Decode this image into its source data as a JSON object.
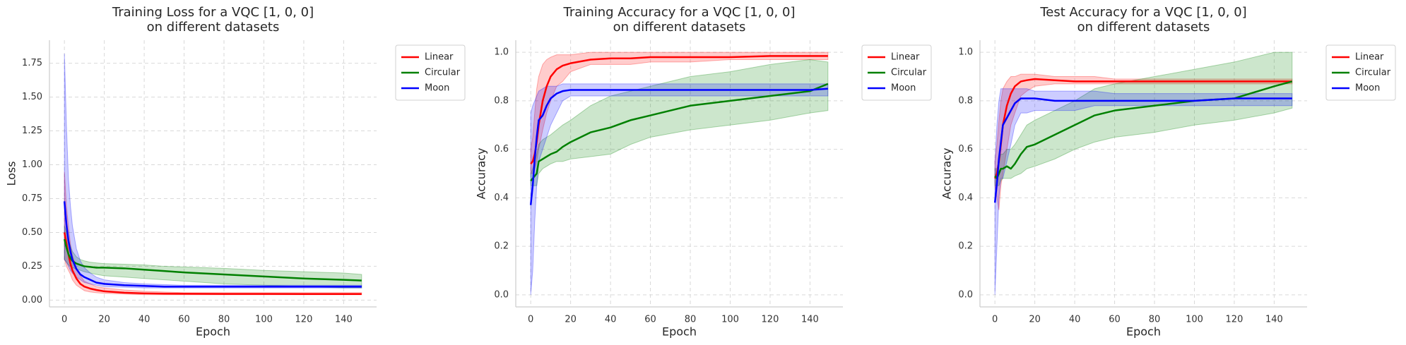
{
  "chart_data": [
    {
      "type": "line",
      "title": "Training Loss for a VQC [1, 0, 0]",
      "subtitle": "on different datasets",
      "xlabel": "Epoch",
      "ylabel": "Loss",
      "x": [
        0,
        1,
        2,
        3,
        4,
        6,
        8,
        10,
        13,
        16,
        20,
        30,
        40,
        50,
        60,
        80,
        100,
        120,
        140,
        149
      ],
      "xlim": [
        -7.5,
        156.5
      ],
      "ylim": [
        -0.05,
        1.92
      ],
      "xticks": [
        0,
        20,
        40,
        60,
        80,
        100,
        120,
        140
      ],
      "yticks": [
        {
          "value": 0,
          "label": "0.00"
        },
        0.25,
        {
          "value": 0.5,
          "label": "0.50"
        },
        0.75,
        {
          "value": 1,
          "label": "1.00"
        },
        1.25,
        {
          "value": 1.5,
          "label": "1.50"
        },
        1.75
      ],
      "grid": true,
      "legend": "outside",
      "band_opacity": 0.2,
      "series": [
        {
          "name": "Linear",
          "color": "#ff0000",
          "values": [
            0.5,
            0.42,
            0.34,
            0.27,
            0.22,
            0.16,
            0.12,
            0.1,
            0.085,
            0.075,
            0.065,
            0.055,
            0.05,
            0.048,
            0.047,
            0.046,
            0.046,
            0.045,
            0.045,
            0.045
          ],
          "lower": [
            0.3,
            0.25,
            0.22,
            0.19,
            0.15,
            0.11,
            0.09,
            0.07,
            0.06,
            0.055,
            0.05,
            0.045,
            0.04,
            0.04,
            0.04,
            0.04,
            0.04,
            0.04,
            0.04,
            0.04
          ],
          "upper": [
            0.95,
            0.7,
            0.55,
            0.42,
            0.33,
            0.24,
            0.18,
            0.14,
            0.12,
            0.1,
            0.09,
            0.075,
            0.065,
            0.06,
            0.055,
            0.055,
            0.055,
            0.055,
            0.055,
            0.055
          ]
        },
        {
          "name": "Circular",
          "color": "#008000",
          "values": [
            0.45,
            0.39,
            0.34,
            0.31,
            0.29,
            0.27,
            0.26,
            0.25,
            0.245,
            0.24,
            0.24,
            0.235,
            0.225,
            0.215,
            0.205,
            0.19,
            0.175,
            0.16,
            0.15,
            0.145
          ],
          "lower": [
            0.3,
            0.28,
            0.26,
            0.25,
            0.24,
            0.23,
            0.22,
            0.21,
            0.2,
            0.19,
            0.18,
            0.17,
            0.16,
            0.15,
            0.14,
            0.12,
            0.11,
            0.1,
            0.09,
            0.09
          ],
          "upper": [
            0.55,
            0.5,
            0.45,
            0.4,
            0.36,
            0.32,
            0.3,
            0.29,
            0.28,
            0.275,
            0.27,
            0.265,
            0.26,
            0.25,
            0.245,
            0.235,
            0.22,
            0.21,
            0.2,
            0.19
          ]
        },
        {
          "name": "Moon",
          "color": "#0000ff",
          "values": [
            0.73,
            0.56,
            0.44,
            0.36,
            0.3,
            0.23,
            0.19,
            0.17,
            0.15,
            0.13,
            0.12,
            0.11,
            0.105,
            0.1,
            0.1,
            0.1,
            0.1,
            0.1,
            0.1,
            0.1
          ],
          "lower": [
            0.3,
            0.28,
            0.25,
            0.22,
            0.2,
            0.17,
            0.15,
            0.13,
            0.12,
            0.11,
            0.1,
            0.095,
            0.09,
            0.09,
            0.09,
            0.09,
            0.09,
            0.09,
            0.09,
            0.09
          ],
          "upper": [
            1.82,
            1.3,
            0.9,
            0.7,
            0.55,
            0.38,
            0.29,
            0.24,
            0.2,
            0.17,
            0.15,
            0.13,
            0.12,
            0.115,
            0.11,
            0.11,
            0.11,
            0.11,
            0.11,
            0.11
          ]
        }
      ]
    },
    {
      "type": "line",
      "title": "Training Accuracy for a VQC [1, 0, 0]",
      "subtitle": "on different datasets",
      "xlabel": "Epoch",
      "ylabel": "Accuracy",
      "x": [
        0,
        1,
        2,
        3,
        4,
        6,
        8,
        10,
        13,
        16,
        20,
        30,
        40,
        50,
        60,
        80,
        100,
        120,
        140,
        149
      ],
      "xlim": [
        -7.5,
        156.5
      ],
      "ylim": [
        -0.05,
        1.05
      ],
      "xticks": [
        0,
        20,
        40,
        60,
        80,
        100,
        120,
        140
      ],
      "yticks": [
        {
          "value": 0,
          "label": "0.0"
        },
        0.2,
        0.4,
        0.6,
        0.8,
        {
          "value": 1,
          "label": "1.0"
        }
      ],
      "grid": true,
      "legend": "outside",
      "band_opacity": 0.2,
      "series": [
        {
          "name": "Linear",
          "color": "#ff0000",
          "values": [
            0.54,
            0.55,
            0.58,
            0.63,
            0.7,
            0.8,
            0.86,
            0.9,
            0.93,
            0.945,
            0.955,
            0.97,
            0.975,
            0.975,
            0.98,
            0.98,
            0.98,
            0.985,
            0.985,
            0.985
          ],
          "lower": [
            0.5,
            0.5,
            0.52,
            0.55,
            0.6,
            0.68,
            0.75,
            0.8,
            0.86,
            0.88,
            0.92,
            0.95,
            0.95,
            0.95,
            0.96,
            0.96,
            0.97,
            0.97,
            0.97,
            0.97
          ],
          "upper": [
            0.6,
            0.65,
            0.75,
            0.85,
            0.9,
            0.95,
            0.97,
            0.98,
            0.99,
            0.99,
            0.99,
            1.0,
            1.0,
            1.0,
            1.0,
            1.0,
            1.0,
            1.0,
            1.0,
            1.0
          ]
        },
        {
          "name": "Circular",
          "color": "#008000",
          "values": [
            0.47,
            0.48,
            0.49,
            0.5,
            0.55,
            0.56,
            0.57,
            0.58,
            0.59,
            0.61,
            0.63,
            0.67,
            0.69,
            0.72,
            0.74,
            0.78,
            0.8,
            0.82,
            0.84,
            0.87
          ],
          "lower": [
            0.45,
            0.45,
            0.45,
            0.45,
            0.5,
            0.52,
            0.53,
            0.54,
            0.55,
            0.55,
            0.56,
            0.57,
            0.58,
            0.62,
            0.65,
            0.68,
            0.7,
            0.72,
            0.75,
            0.76
          ],
          "upper": [
            0.5,
            0.52,
            0.55,
            0.58,
            0.62,
            0.64,
            0.65,
            0.66,
            0.68,
            0.7,
            0.72,
            0.78,
            0.82,
            0.84,
            0.86,
            0.9,
            0.92,
            0.95,
            0.97,
            0.96
          ]
        },
        {
          "name": "Moon",
          "color": "#0000ff",
          "values": [
            0.37,
            0.45,
            0.56,
            0.65,
            0.72,
            0.74,
            0.78,
            0.81,
            0.83,
            0.84,
            0.845,
            0.845,
            0.845,
            0.845,
            0.845,
            0.845,
            0.845,
            0.845,
            0.845,
            0.85
          ],
          "lower": [
            0.0,
            0.1,
            0.3,
            0.45,
            0.55,
            0.6,
            0.65,
            0.7,
            0.75,
            0.8,
            0.82,
            0.82,
            0.82,
            0.82,
            0.82,
            0.82,
            0.82,
            0.82,
            0.82,
            0.82
          ],
          "upper": [
            0.75,
            0.78,
            0.8,
            0.82,
            0.84,
            0.85,
            0.86,
            0.86,
            0.86,
            0.87,
            0.87,
            0.87,
            0.87,
            0.87,
            0.87,
            0.87,
            0.87,
            0.87,
            0.87,
            0.87
          ]
        }
      ]
    },
    {
      "type": "line",
      "title": "Test Accuracy for a VQC [1, 0, 0]",
      "subtitle": "on different datasets",
      "xlabel": "Epoch",
      "ylabel": "Accuracy",
      "x": [
        0,
        1,
        2,
        3,
        4,
        6,
        8,
        10,
        13,
        16,
        20,
        30,
        40,
        50,
        60,
        80,
        100,
        120,
        140,
        149
      ],
      "xlim": [
        -7.5,
        156.5
      ],
      "ylim": [
        -0.05,
        1.05
      ],
      "xticks": [
        0,
        20,
        40,
        60,
        80,
        100,
        120,
        140
      ],
      "yticks": [
        {
          "value": 0,
          "label": "0.0"
        },
        0.2,
        0.4,
        0.6,
        0.8,
        {
          "value": 1,
          "label": "1.0"
        }
      ],
      "grid": true,
      "legend": "outside",
      "band_opacity": 0.2,
      "series": [
        {
          "name": "Linear",
          "color": "#ff0000",
          "values": [
            0.48,
            0.5,
            0.55,
            0.62,
            0.7,
            0.78,
            0.83,
            0.86,
            0.88,
            0.885,
            0.89,
            0.885,
            0.88,
            0.88,
            0.88,
            0.88,
            0.88,
            0.88,
            0.88,
            0.88
          ],
          "lower": [
            0.45,
            0.4,
            0.35,
            0.45,
            0.5,
            0.6,
            0.7,
            0.75,
            0.82,
            0.84,
            0.86,
            0.87,
            0.87,
            0.87,
            0.87,
            0.87,
            0.87,
            0.87,
            0.87,
            0.87
          ],
          "upper": [
            0.55,
            0.62,
            0.72,
            0.8,
            0.85,
            0.88,
            0.9,
            0.9,
            0.91,
            0.91,
            0.91,
            0.9,
            0.9,
            0.9,
            0.89,
            0.89,
            0.89,
            0.89,
            0.89,
            0.89
          ]
        },
        {
          "name": "Circular",
          "color": "#008000",
          "values": [
            0.49,
            0.48,
            0.5,
            0.52,
            0.52,
            0.53,
            0.52,
            0.54,
            0.58,
            0.61,
            0.62,
            0.66,
            0.7,
            0.74,
            0.76,
            0.78,
            0.8,
            0.81,
            0.86,
            0.88
          ],
          "lower": [
            0.45,
            0.45,
            0.45,
            0.47,
            0.48,
            0.48,
            0.48,
            0.49,
            0.5,
            0.52,
            0.53,
            0.56,
            0.6,
            0.63,
            0.65,
            0.67,
            0.7,
            0.72,
            0.75,
            0.77
          ],
          "upper": [
            0.52,
            0.52,
            0.55,
            0.58,
            0.58,
            0.6,
            0.6,
            0.62,
            0.66,
            0.7,
            0.72,
            0.76,
            0.8,
            0.85,
            0.87,
            0.9,
            0.93,
            0.96,
            1.0,
            1.0
          ]
        },
        {
          "name": "Moon",
          "color": "#0000ff",
          "values": [
            0.38,
            0.46,
            0.56,
            0.63,
            0.7,
            0.73,
            0.76,
            0.79,
            0.81,
            0.81,
            0.81,
            0.8,
            0.8,
            0.8,
            0.8,
            0.8,
            0.8,
            0.81,
            0.81,
            0.81
          ],
          "lower": [
            0.0,
            0.2,
            0.4,
            0.48,
            0.48,
            0.55,
            0.62,
            0.7,
            0.75,
            0.75,
            0.76,
            0.76,
            0.76,
            0.78,
            0.78,
            0.78,
            0.78,
            0.78,
            0.78,
            0.78
          ],
          "upper": [
            0.55,
            0.7,
            0.8,
            0.85,
            0.85,
            0.85,
            0.85,
            0.85,
            0.85,
            0.85,
            0.84,
            0.84,
            0.84,
            0.84,
            0.83,
            0.83,
            0.83,
            0.83,
            0.83,
            0.83
          ]
        }
      ]
    }
  ]
}
